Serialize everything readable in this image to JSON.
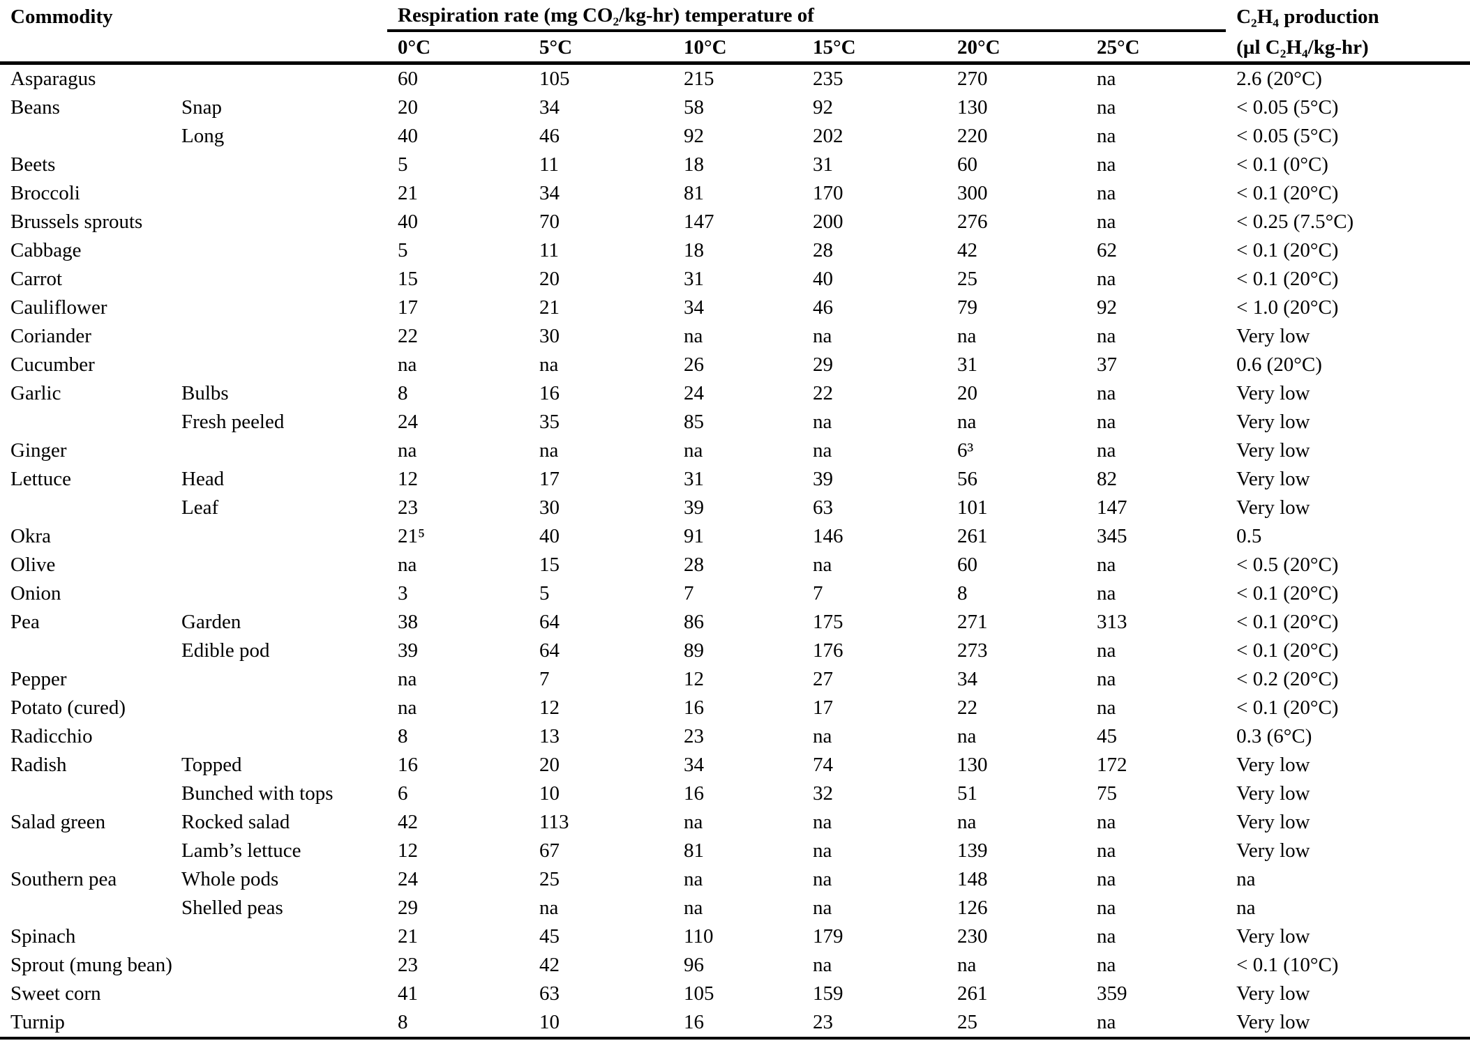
{
  "table": {
    "header": {
      "commodity": "Commodity",
      "respiration_group": "Respiration rate (mg CO₂/kg-hr) temperature of",
      "temps": [
        "0°C",
        "5°C",
        "10°C",
        "15°C",
        "20°C",
        "25°C"
      ],
      "ethylene_line1": "C₂H₄ production",
      "ethylene_line2": "(µl C₂H₄/kg-hr)"
    },
    "na_text": "na",
    "rows": [
      {
        "commodity": "Asparagus",
        "variety": "",
        "values": [
          "60",
          "105",
          "215",
          "235",
          "270",
          "na"
        ],
        "ethylene": "2.6 (20°C)"
      },
      {
        "commodity": "Beans",
        "variety": "Snap",
        "values": [
          "20",
          "34",
          "58",
          "92",
          "130",
          "na"
        ],
        "ethylene": "< 0.05 (5°C)"
      },
      {
        "commodity": "",
        "variety": "Long",
        "values": [
          "40",
          "46",
          "92",
          "202",
          "220",
          "na"
        ],
        "ethylene": "< 0.05 (5°C)"
      },
      {
        "commodity": "Beets",
        "variety": "",
        "values": [
          "5",
          "11",
          "18",
          "31",
          "60",
          "na"
        ],
        "ethylene": "< 0.1 (0°C)"
      },
      {
        "commodity": "Broccoli",
        "variety": "",
        "values": [
          "21",
          "34",
          "81",
          "170",
          "300",
          "na"
        ],
        "ethylene": "< 0.1 (20°C)"
      },
      {
        "commodity": "Brussels sprouts",
        "variety": "",
        "values": [
          "40",
          "70",
          "147",
          "200",
          "276",
          "na"
        ],
        "ethylene": "< 0.25 (7.5°C)"
      },
      {
        "commodity": "Cabbage",
        "variety": "",
        "values": [
          "5",
          "11",
          "18",
          "28",
          "42",
          "62"
        ],
        "ethylene": "< 0.1 (20°C)"
      },
      {
        "commodity": "Carrot",
        "variety": "",
        "values": [
          "15",
          "20",
          "31",
          "40",
          "25",
          "na"
        ],
        "ethylene": "< 0.1 (20°C)"
      },
      {
        "commodity": "Cauliflower",
        "variety": "",
        "values": [
          "17",
          "21",
          "34",
          "46",
          "79",
          "92"
        ],
        "ethylene": "< 1.0 (20°C)"
      },
      {
        "commodity": "Coriander",
        "variety": "",
        "values": [
          "22",
          "30",
          "na",
          "na",
          "na",
          "na"
        ],
        "ethylene": "Very low"
      },
      {
        "commodity": "Cucumber",
        "variety": "",
        "values": [
          "na",
          "na",
          "26",
          "29",
          "31",
          "37"
        ],
        "ethylene": "0.6 (20°C)"
      },
      {
        "commodity": "Garlic",
        "variety": "Bulbs",
        "values": [
          "8",
          "16",
          "24",
          "22",
          "20",
          "na"
        ],
        "ethylene": "Very low"
      },
      {
        "commodity": "",
        "variety": "Fresh peeled",
        "values": [
          "24",
          "35",
          "85",
          "na",
          "na",
          "na"
        ],
        "ethylene": "Very low"
      },
      {
        "commodity": "Ginger",
        "variety": "",
        "values": [
          "na",
          "na",
          "na",
          "na",
          "6³",
          "na"
        ],
        "ethylene": "Very low"
      },
      {
        "commodity": "Lettuce",
        "variety": "Head",
        "values": [
          "12",
          "17",
          "31",
          "39",
          "56",
          "82"
        ],
        "ethylene": "Very low"
      },
      {
        "commodity": "",
        "variety": "Leaf",
        "values": [
          "23",
          "30",
          "39",
          "63",
          "101",
          "147"
        ],
        "ethylene": "Very low"
      },
      {
        "commodity": "Okra",
        "variety": "",
        "values": [
          "21⁵",
          "40",
          "91",
          "146",
          "261",
          "345"
        ],
        "ethylene": "0.5"
      },
      {
        "commodity": "Olive",
        "variety": "",
        "values": [
          "na",
          "15",
          "28",
          "na",
          "60",
          "na"
        ],
        "ethylene": "< 0.5 (20°C)"
      },
      {
        "commodity": "Onion",
        "variety": "",
        "values": [
          "3",
          "5",
          "7",
          "7",
          "8",
          "na"
        ],
        "ethylene": "< 0.1 (20°C)"
      },
      {
        "commodity": "Pea",
        "variety": "Garden",
        "values": [
          "38",
          "64",
          "86",
          "175",
          "271",
          "313"
        ],
        "ethylene": "< 0.1 (20°C)"
      },
      {
        "commodity": "",
        "variety": "Edible pod",
        "values": [
          "39",
          "64",
          "89",
          "176",
          "273",
          "na"
        ],
        "ethylene": "< 0.1 (20°C)"
      },
      {
        "commodity": "Pepper",
        "variety": "",
        "values": [
          "na",
          "7",
          "12",
          "27",
          "34",
          "na"
        ],
        "ethylene": "< 0.2 (20°C)"
      },
      {
        "commodity": "Potato (cured)",
        "variety": "",
        "values": [
          "na",
          "12",
          "16",
          "17",
          "22",
          "na"
        ],
        "ethylene": "< 0.1 (20°C)"
      },
      {
        "commodity": "Radicchio",
        "variety": "",
        "values": [
          "8",
          "13",
          "23",
          "na",
          "na",
          "45"
        ],
        "ethylene": "0.3 (6°C)"
      },
      {
        "commodity": "Radish",
        "variety": "Topped",
        "values": [
          "16",
          "20",
          "34",
          "74",
          "130",
          "172"
        ],
        "ethylene": "Very low"
      },
      {
        "commodity": "",
        "variety": "Bunched with tops",
        "values": [
          "6",
          "10",
          "16",
          "32",
          "51",
          "75"
        ],
        "ethylene": "Very low"
      },
      {
        "commodity": "Salad green",
        "variety": "Rocked salad",
        "values": [
          "42",
          "113",
          "na",
          "na",
          "na",
          "na"
        ],
        "ethylene": "Very low"
      },
      {
        "commodity": "",
        "variety": "Lamb’s lettuce",
        "values": [
          "12",
          "67",
          "81",
          "na",
          "139",
          "na"
        ],
        "ethylene": "Very low"
      },
      {
        "commodity": "Southern pea",
        "variety": "Whole pods",
        "values": [
          "24",
          "25",
          "na",
          "na",
          "148",
          "na"
        ],
        "ethylene": "na"
      },
      {
        "commodity": "",
        "variety": "Shelled peas",
        "values": [
          "29",
          "na",
          "na",
          "na",
          "126",
          "na"
        ],
        "ethylene": "na"
      },
      {
        "commodity": "Spinach",
        "variety": "",
        "values": [
          "21",
          "45",
          "110",
          "179",
          "230",
          "na"
        ],
        "ethylene": "Very low"
      },
      {
        "commodity": "Sprout (mung bean)",
        "variety": "",
        "values": [
          "23",
          "42",
          "96",
          "na",
          "na",
          "na"
        ],
        "ethylene": "< 0.1 (10°C)"
      },
      {
        "commodity": "Sweet corn",
        "variety": "",
        "values": [
          "41",
          "63",
          "105",
          "159",
          "261",
          "359"
        ],
        "ethylene": "Very low"
      },
      {
        "commodity": "Turnip",
        "variety": "",
        "values": [
          "8",
          "10",
          "16",
          "23",
          "25",
          "na"
        ],
        "ethylene": "Very low"
      }
    ]
  }
}
